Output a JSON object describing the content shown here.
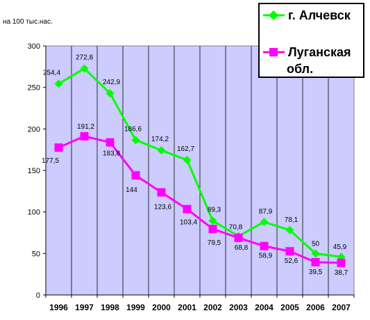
{
  "chart_data": {
    "type": "line",
    "unit_label": "на 100 тыс.нас.",
    "categories": [
      "1996",
      "1997",
      "1998",
      "1999",
      "2000",
      "2001",
      "2002",
      "2003",
      "2004",
      "2005",
      "2006",
      "2007"
    ],
    "ylim": [
      0,
      300
    ],
    "yticks": [
      0,
      50,
      100,
      150,
      200,
      250,
      300
    ],
    "grid": "vertical",
    "plot_background": "#ccccff",
    "legend_position": "top-right",
    "series": [
      {
        "name": "г. Алчевск",
        "color": "#00ff00",
        "marker": "diamond",
        "values": [
          254.4,
          272.8,
          242.9,
          186.6,
          174.2,
          162.7,
          89.3,
          70.8,
          87.9,
          78.1,
          50,
          45.9
        ],
        "labels": [
          "254,4",
          "272,8",
          "242,9",
          "186,6",
          "174,2",
          "162,7",
          "89,3",
          "70,8",
          "87,9",
          "78,1",
          "50",
          "45,9"
        ]
      },
      {
        "name": "Луганская обл.",
        "name_lines": [
          "Луганская",
          "обл."
        ],
        "color": "#ff00ff",
        "marker": "square",
        "values": [
          177.5,
          191.2,
          183.8,
          144,
          123.6,
          103.4,
          79.5,
          68.8,
          58.9,
          52.6,
          39.5,
          38.7
        ],
        "labels": [
          "177,5",
          "191,2",
          "183,8",
          "144",
          "123,6",
          "103,4",
          "79,5",
          "68,8",
          "58,9",
          "52,6",
          "39,5",
          "38,7"
        ]
      }
    ]
  }
}
